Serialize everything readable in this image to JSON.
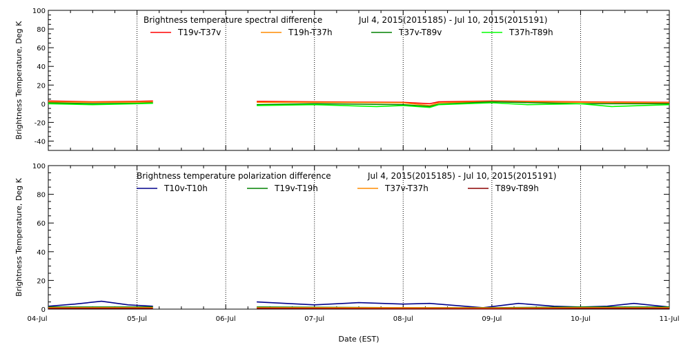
{
  "chart_data": [
    {
      "type": "line",
      "title": "Brightness temperature spectral difference",
      "date_range": "Jul  4, 2015(2015185) - Jul 10, 2015(2015191)",
      "ylabel": "Brightness Temperature, Deg K",
      "xlabel": "",
      "ylim": [
        -50,
        100
      ],
      "y_ticks": [
        -40,
        -20,
        0,
        20,
        40,
        60,
        80,
        100
      ],
      "xlim": [
        0,
        7
      ],
      "x_tick_labels": [],
      "grid": "dotted vertical lines at each day",
      "legend_placement": "top",
      "data_gap_days": [
        1.18,
        2.35
      ],
      "series": [
        {
          "name": "T19v-T37v",
          "color": "#ff0000",
          "x": [
            0,
            0.5,
            1.0,
            1.18,
            2.35,
            3.0,
            4.0,
            4.3,
            4.4,
            5.0,
            6.0,
            7.0
          ],
          "y": [
            3,
            2,
            2.5,
            3,
            2.5,
            2,
            1.5,
            0,
            2,
            3,
            2,
            1.5
          ]
        },
        {
          "name": "T19h-T37h",
          "color": "#ff8c00",
          "x": [
            0,
            0.5,
            1.0,
            1.18,
            2.35,
            3.0,
            4.0,
            4.3,
            4.4,
            5.0,
            6.0,
            7.0
          ],
          "y": [
            2,
            1.5,
            1.8,
            2,
            1.5,
            1.5,
            1,
            -2,
            1,
            2.5,
            1.5,
            1
          ]
        },
        {
          "name": "T37v-T89v",
          "color": "#008000",
          "x": [
            0,
            0.5,
            1.0,
            1.18,
            2.35,
            3.0,
            4.0,
            4.3,
            4.4,
            5.0,
            6.0,
            7.0
          ],
          "y": [
            1,
            0,
            0.5,
            1,
            -1,
            0,
            -1,
            -3,
            -0.5,
            2,
            0,
            0
          ]
        },
        {
          "name": "T37h-T89h",
          "color": "#00ff00",
          "x": [
            0,
            0.5,
            1.0,
            1.18,
            2.35,
            3.0,
            3.7,
            4.0,
            4.3,
            4.4,
            5.0,
            5.4,
            6.0,
            6.35,
            7.0
          ],
          "y": [
            0,
            -1,
            0,
            0.5,
            -2,
            -1,
            -3,
            -2,
            -4,
            -1,
            1,
            -1,
            0,
            -3,
            -1
          ]
        }
      ]
    },
    {
      "type": "line",
      "title": "Brightness temperature polarization difference",
      "date_range": "Jul  4, 2015(2015185) - Jul 10, 2015(2015191)",
      "ylabel": "Brightness Temperature, Deg K",
      "xlabel": "Date (EST)",
      "ylim": [
        0,
        100
      ],
      "y_ticks": [
        0,
        20,
        40,
        60,
        80,
        100
      ],
      "xlim": [
        0,
        7
      ],
      "x_tick_labels": [
        "04-Jul",
        "05-Jul",
        "06-Jul",
        "07-Jul",
        "08-Jul",
        "09-Jul",
        "10-Jul",
        "11-Jul"
      ],
      "grid": "dotted vertical lines at each day",
      "legend_placement": "top",
      "data_gap_days": [
        1.18,
        2.35
      ],
      "series": [
        {
          "name": "T10v-T10h",
          "color": "#00008b",
          "x": [
            0,
            0.3,
            0.6,
            0.9,
            1.18,
            2.35,
            2.5,
            3.0,
            3.5,
            4.0,
            4.3,
            4.5,
            4.9,
            5.3,
            5.7,
            6.0,
            6.3,
            6.6,
            7.0
          ],
          "y": [
            2,
            3.5,
            5.5,
            3,
            2,
            5,
            4.5,
            3,
            4.5,
            3.5,
            4,
            3,
            1,
            4,
            2,
            1.5,
            2,
            4,
            1.5
          ]
        },
        {
          "name": "T19v-T19h",
          "color": "#008000",
          "x": [
            0,
            1.18,
            2.35,
            4.0,
            5.0,
            6.0,
            7.0
          ],
          "y": [
            1.5,
            1.5,
            1.5,
            1,
            1,
            1.5,
            1.5
          ]
        },
        {
          "name": "T37v-T37h",
          "color": "#ff8c00",
          "x": [
            0,
            1.18,
            2.35,
            4.0,
            5.0,
            6.0,
            7.0
          ],
          "y": [
            1,
            1,
            1,
            1,
            0.8,
            1,
            1
          ]
        },
        {
          "name": "T89v-T89h",
          "color": "#8b0000",
          "x": [
            0,
            1.18,
            2.35,
            4.0,
            5.0,
            6.0,
            7.0
          ],
          "y": [
            0.5,
            0.5,
            0.5,
            0.3,
            0.2,
            0.5,
            0.5
          ]
        }
      ]
    }
  ]
}
